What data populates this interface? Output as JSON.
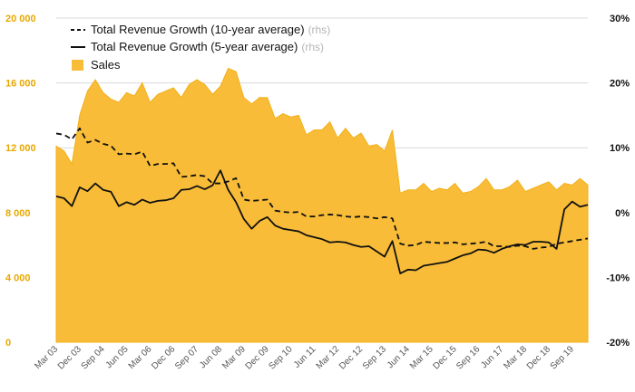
{
  "colors": {
    "sales": "#f8bc38",
    "sales_edge": "#f2b019",
    "line": "#111111",
    "left_ticks": "#e8a800",
    "grid": "#d9d9d9"
  },
  "chart_data": {
    "type": "area",
    "grid": true,
    "legend": "top-left",
    "y_left": {
      "min": 0,
      "max": 20000,
      "ticks": [
        0,
        4000,
        8000,
        12000,
        16000,
        20000
      ],
      "tick_labels": [
        "0",
        "4 000",
        "8 000",
        "12 000",
        "16 000",
        "20 000"
      ]
    },
    "y_right": {
      "min": -20,
      "max": 30,
      "ticks": [
        -20,
        -10,
        0,
        10,
        20,
        30
      ],
      "tick_labels": [
        "-20%",
        "-10%",
        "0%",
        "10%",
        "20%",
        "30%"
      ]
    },
    "x_tick_labels": [
      "Mar 03",
      "Dec 03",
      "Sep 04",
      "Jun 05",
      "Mar 06",
      "Dec 06",
      "Sep 07",
      "Jun 08",
      "Mar 09",
      "Dec 09",
      "Sep 10",
      "Jun 11",
      "Mar 12",
      "Dec 12",
      "Sep 13",
      "Jun 14",
      "Mar 15",
      "Dec 15",
      "Sep 16",
      "Jun 17",
      "Mar 18",
      "Dec 18",
      "Sep 19"
    ],
    "legend_items": [
      {
        "label": "Total Revenue Growth (10-year average)",
        "suffix": "(rhs)"
      },
      {
        "label": "Total Revenue Growth (5-year average)",
        "suffix": "(rhs)"
      },
      {
        "label": "Sales",
        "suffix": ""
      }
    ],
    "series": [
      {
        "name": "Sales",
        "axis": "left",
        "type": "area",
        "values": [
          12100,
          11800,
          11000,
          14000,
          15500,
          16200,
          15400,
          15000,
          14800,
          15400,
          15200,
          16000,
          14800,
          15300,
          15500,
          15700,
          15100,
          15900,
          16200,
          15900,
          15300,
          15800,
          16900,
          16700,
          15100,
          14700,
          15100,
          15100,
          13800,
          14100,
          13900,
          14000,
          12800,
          13100,
          13100,
          13600,
          12600,
          13200,
          12600,
          12900,
          12100,
          12200,
          11800,
          13100,
          9200,
          9400,
          9400,
          9800,
          9300,
          9500,
          9400,
          9800,
          9200,
          9300,
          9600,
          10100,
          9400,
          9400,
          9600,
          10000,
          9300,
          9500,
          9700,
          9900,
          9400,
          9800,
          9700,
          10100,
          9700
        ]
      },
      {
        "name": "Total Revenue Growth (10-year average)",
        "axis": "right",
        "type": "line",
        "dash": true,
        "values": [
          12.2,
          12.0,
          11.3,
          13.0,
          10.8,
          11.2,
          10.6,
          10.3,
          9.0,
          9.1,
          9.0,
          9.4,
          7.2,
          7.5,
          7.5,
          7.6,
          5.5,
          5.6,
          5.8,
          5.6,
          4.5,
          4.5,
          4.8,
          5.3,
          2.0,
          1.8,
          1.9,
          2.0,
          0.3,
          0.1,
          0.0,
          0.1,
          -0.6,
          -0.6,
          -0.4,
          -0.3,
          -0.4,
          -0.6,
          -0.7,
          -0.6,
          -0.7,
          -0.9,
          -0.7,
          -0.9,
          -4.8,
          -5.1,
          -5.0,
          -4.5,
          -4.6,
          -4.7,
          -4.7,
          -4.6,
          -4.9,
          -4.8,
          -4.7,
          -4.5,
          -5.2,
          -5.2,
          -5.3,
          -5.1,
          -5.2,
          -5.6,
          -5.4,
          -5.3,
          -4.8,
          -4.6,
          -4.4,
          -4.2,
          -4.0
        ]
      },
      {
        "name": "Total Revenue Growth (5-year average)",
        "axis": "right",
        "type": "line",
        "dash": false,
        "values": [
          2.5,
          2.2,
          1.0,
          3.9,
          3.3,
          4.5,
          3.5,
          3.2,
          1.0,
          1.6,
          1.2,
          2.0,
          1.5,
          1.8,
          1.9,
          2.2,
          3.5,
          3.6,
          4.1,
          3.6,
          4.2,
          6.5,
          3.5,
          1.6,
          -1.0,
          -2.5,
          -1.3,
          -0.7,
          -2.0,
          -2.5,
          -2.7,
          -2.9,
          -3.5,
          -3.8,
          -4.1,
          -4.6,
          -4.5,
          -4.6,
          -5.0,
          -5.3,
          -5.2,
          -6.0,
          -6.8,
          -4.4,
          -9.4,
          -8.8,
          -8.9,
          -8.2,
          -8.0,
          -7.8,
          -7.6,
          -7.1,
          -6.6,
          -6.3,
          -5.7,
          -5.8,
          -6.2,
          -5.6,
          -5.2,
          -4.9,
          -5.0,
          -4.5,
          -4.5,
          -4.6,
          -5.6,
          0.5,
          1.7,
          0.9,
          1.2
        ]
      }
    ]
  }
}
